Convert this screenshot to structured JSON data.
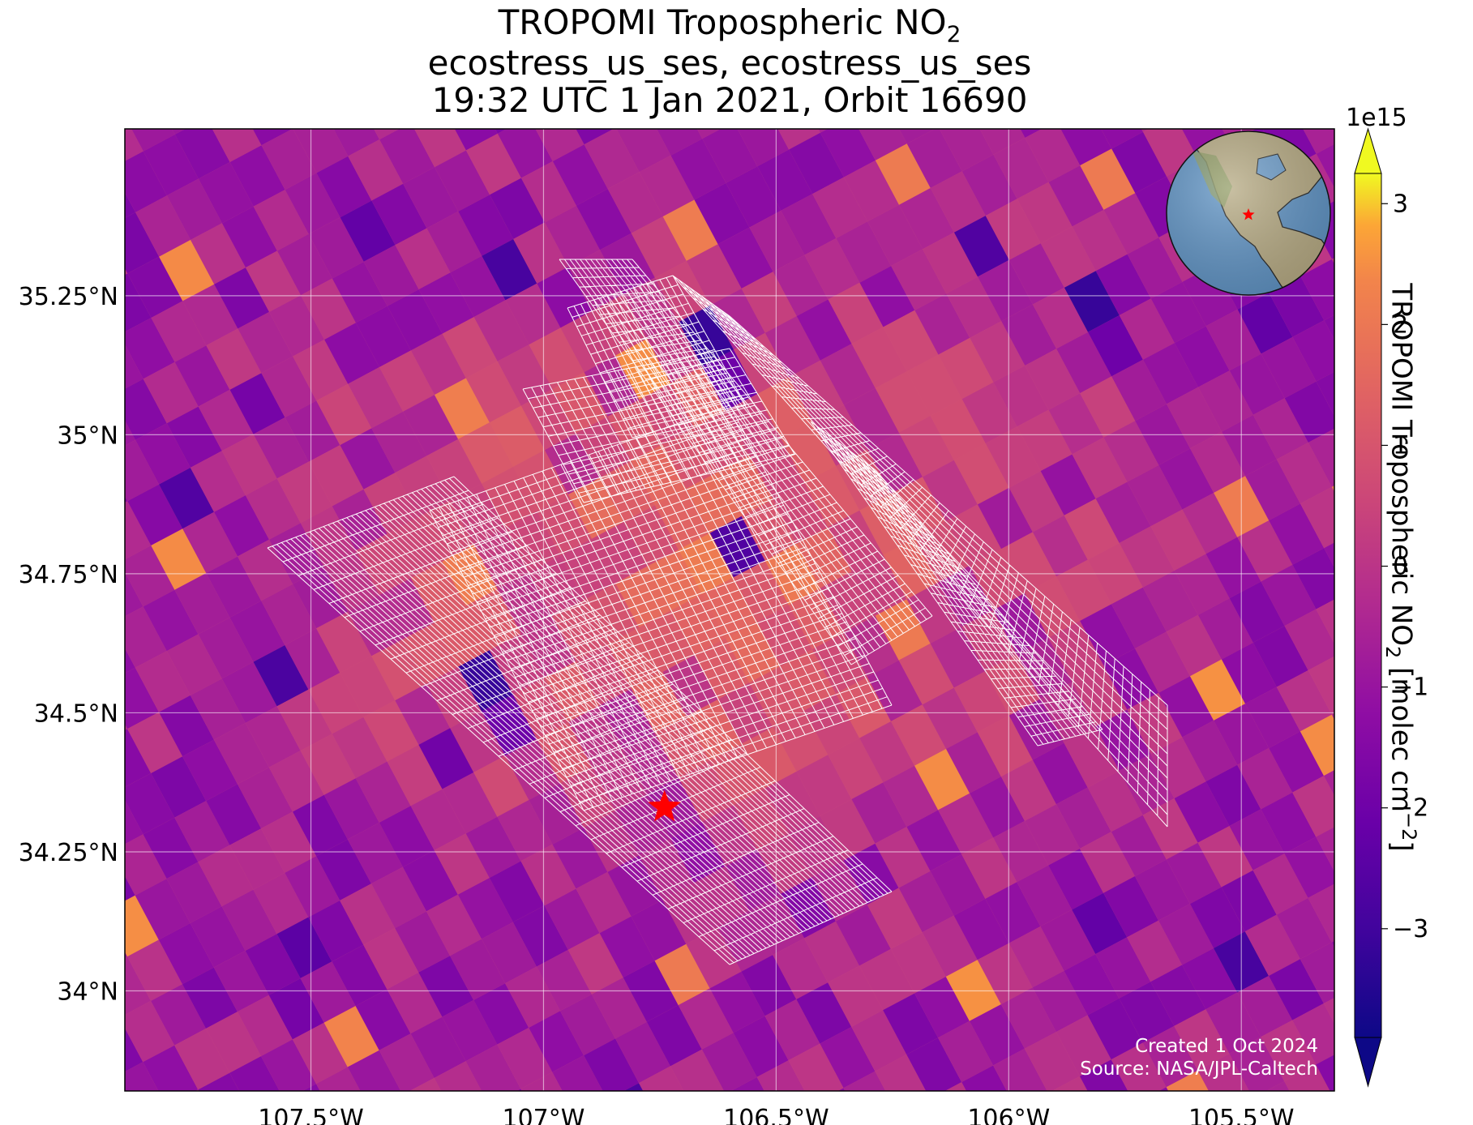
{
  "title": {
    "line1_prefix": "TROPOMI Tropospheric NO",
    "line1_sub": "2",
    "line2": "ecostress_us_ses, ecostress_us_ses",
    "line3": "19:32 UTC 1 Jan 2021, Orbit 16690"
  },
  "map": {
    "lon_range": [
      -107.9,
      -105.3
    ],
    "lat_range": [
      33.82,
      35.55
    ],
    "x_ticks": [
      {
        "value": -107.5,
        "label": "107.5°W"
      },
      {
        "value": -107.0,
        "label": "107°W"
      },
      {
        "value": -106.5,
        "label": "106.5°W"
      },
      {
        "value": -106.0,
        "label": "106°W"
      },
      {
        "value": -105.5,
        "label": "105.5°W"
      }
    ],
    "y_ticks": [
      {
        "value": 35.25,
        "label": "35.25°N"
      },
      {
        "value": 35.0,
        "label": "35°N"
      },
      {
        "value": 34.75,
        "label": "34.75°N"
      },
      {
        "value": 34.5,
        "label": "34.5°N"
      },
      {
        "value": 34.25,
        "label": "34.25°N"
      },
      {
        "value": 34.0,
        "label": "34°N"
      }
    ],
    "gridlines": true,
    "site_marker": {
      "lon": -106.74,
      "lat": 34.33,
      "color": "#ff0000",
      "shape": "star"
    }
  },
  "colorbar": {
    "range": [
      -3.9,
      3.25
    ],
    "extend": "both",
    "colormap": "plasma",
    "scale_label": "1e15",
    "ticks": [
      -3,
      -2,
      -1,
      0,
      1,
      2,
      3
    ],
    "label_prefix": "TROPOMI Tropospheric NO",
    "label_sub": "2",
    "label_mid": " [molec cm",
    "label_sup": "−2",
    "label_end": "]"
  },
  "inset_globe": {
    "view": "North America",
    "marker_color": "#ff0000"
  },
  "credits": {
    "created": "Created 1 Oct 2024",
    "source": "Source: NASA/JPL-Caltech"
  }
}
